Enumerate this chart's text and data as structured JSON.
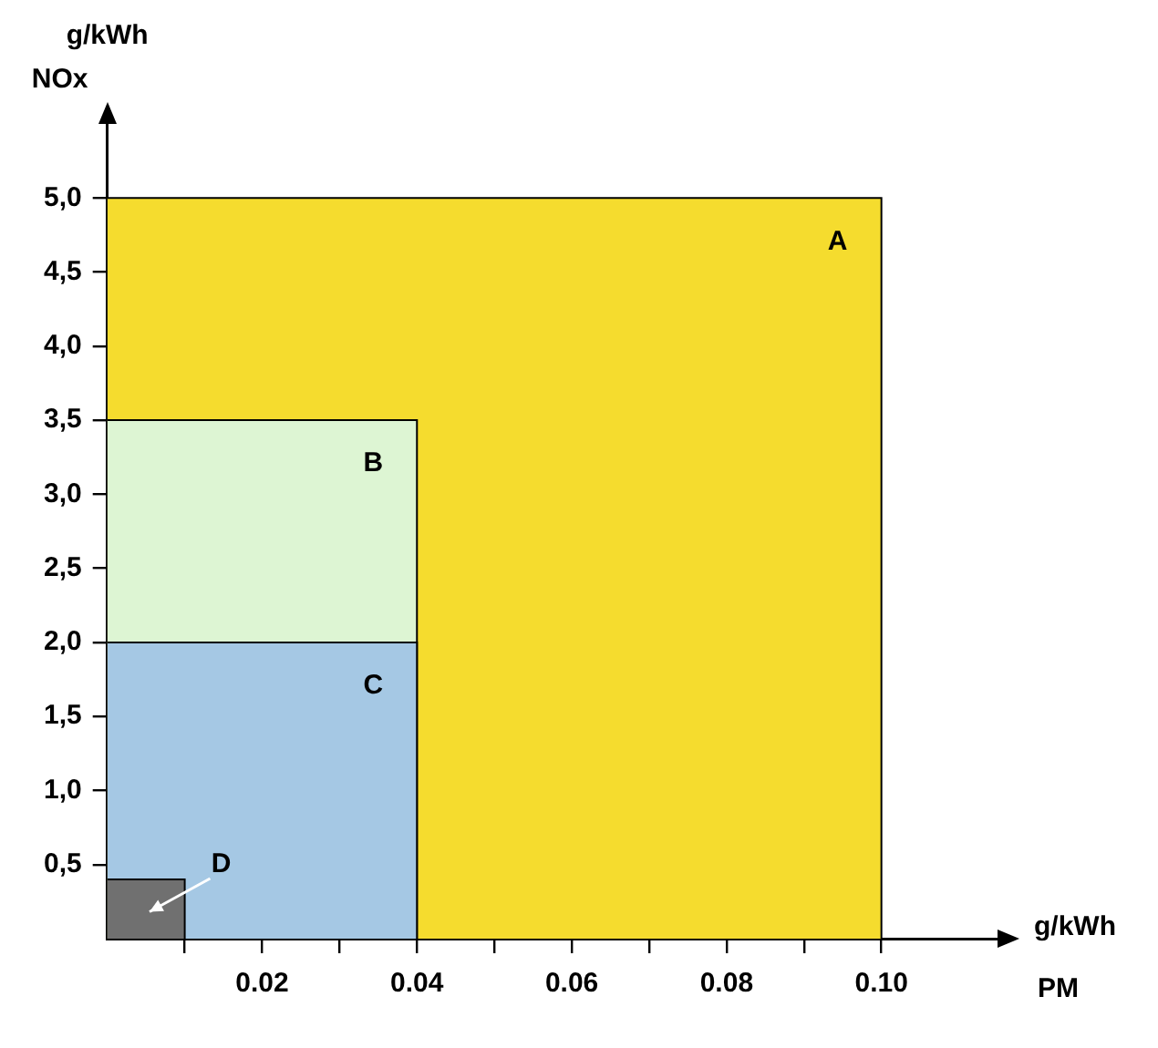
{
  "chart_data": {
    "type": "area",
    "xlabel": "PM",
    "ylabel": "NOx",
    "annotations": [
      "g/kWh",
      "g/kWh"
    ],
    "series": [
      {
        "name": "A",
        "color": "#f5dc2e",
        "x": [
          0,
          0.1,
          0.1
        ],
        "values": [
          5.0,
          5.0,
          0
        ]
      },
      {
        "name": "B",
        "color": "#ddf5d3",
        "x": [
          0,
          0.04,
          0.04
        ],
        "values": [
          3.5,
          3.5,
          0
        ]
      },
      {
        "name": "C",
        "color": "#a5c8e4",
        "x": [
          0,
          0.04,
          0.04
        ],
        "values": [
          2.0,
          2.0,
          0
        ]
      },
      {
        "name": "D",
        "color": "#707070",
        "x": [
          0,
          0.01,
          0.01
        ],
        "values": [
          0.4,
          0.4,
          0
        ]
      }
    ],
    "xlim": [
      0,
      0.115
    ],
    "ylim": [
      0,
      5.5
    ],
    "xticks": [
      {
        "value": 0.01,
        "label": null
      },
      {
        "value": 0.02,
        "label": "0.02"
      },
      {
        "value": 0.03,
        "label": null
      },
      {
        "value": 0.04,
        "label": "0.04"
      },
      {
        "value": 0.05,
        "label": null
      },
      {
        "value": 0.06,
        "label": "0.06"
      },
      {
        "value": 0.07,
        "label": null
      },
      {
        "value": 0.08,
        "label": "0.08"
      },
      {
        "value": 0.09,
        "label": null
      },
      {
        "value": 0.1,
        "label": "0.10"
      }
    ],
    "yticks": [
      {
        "value": 0.5,
        "label": "0,5"
      },
      {
        "value": 1.0,
        "label": "1,0"
      },
      {
        "value": 1.5,
        "label": "1,5"
      },
      {
        "value": 2.0,
        "label": "2,0"
      },
      {
        "value": 2.5,
        "label": "2,5"
      },
      {
        "value": 3.0,
        "label": "3,0"
      },
      {
        "value": 3.5,
        "label": "3,5"
      },
      {
        "value": 4.0,
        "label": "4,0"
      },
      {
        "value": 4.5,
        "label": "4,5"
      },
      {
        "value": 5.0,
        "label": "5,0"
      }
    ],
    "grid": false,
    "legend": false
  }
}
